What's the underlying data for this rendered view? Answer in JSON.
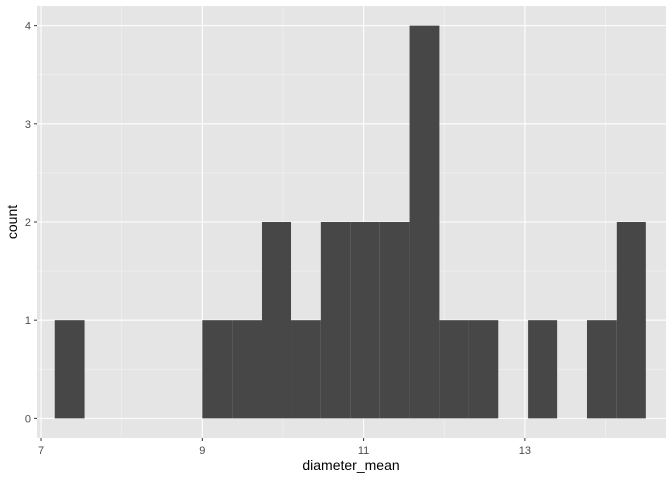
{
  "chart_data": {
    "type": "bar",
    "subtype": "histogram",
    "title": "",
    "xlabel": "diameter_mean",
    "ylabel": "count",
    "xlim": [
      6.95,
      14.75
    ],
    "ylim": [
      -0.2,
      4.2
    ],
    "x_ticks": [
      7,
      9,
      11,
      13
    ],
    "x_tick_labels": [
      "7",
      "9",
      "11",
      "13"
    ],
    "y_ticks": [
      0,
      1,
      2,
      3,
      4
    ],
    "y_tick_labels": [
      "0",
      "1",
      "2",
      "3",
      "4"
    ],
    "grid": true,
    "colors": {
      "panel": "#e5e5e5",
      "grid_major": "#ffffff",
      "bar": "#474747",
      "tick_label": "#4d4d4d"
    },
    "bins": [
      {
        "x0": 7.17,
        "x1": 7.54,
        "count": 1
      },
      {
        "x0": 7.54,
        "x1": 7.9,
        "count": 0
      },
      {
        "x0": 7.9,
        "x1": 8.27,
        "count": 0
      },
      {
        "x0": 8.27,
        "x1": 8.64,
        "count": 0
      },
      {
        "x0": 8.64,
        "x1": 9.0,
        "count": 0
      },
      {
        "x0": 9.0,
        "x1": 9.37,
        "count": 1
      },
      {
        "x0": 9.37,
        "x1": 9.74,
        "count": 1
      },
      {
        "x0": 9.74,
        "x1": 10.1,
        "count": 2
      },
      {
        "x0": 10.1,
        "x1": 10.47,
        "count": 1
      },
      {
        "x0": 10.47,
        "x1": 10.84,
        "count": 2
      },
      {
        "x0": 10.84,
        "x1": 11.2,
        "count": 2
      },
      {
        "x0": 11.2,
        "x1": 11.57,
        "count": 2
      },
      {
        "x0": 11.57,
        "x1": 11.94,
        "count": 4
      },
      {
        "x0": 11.94,
        "x1": 12.3,
        "count": 1
      },
      {
        "x0": 12.3,
        "x1": 12.67,
        "count": 1
      },
      {
        "x0": 12.67,
        "x1": 13.04,
        "count": 0
      },
      {
        "x0": 13.04,
        "x1": 13.4,
        "count": 1
      },
      {
        "x0": 13.4,
        "x1": 13.77,
        "count": 0
      },
      {
        "x0": 13.77,
        "x1": 14.14,
        "count": 1
      },
      {
        "x0": 14.14,
        "x1": 14.5,
        "count": 2
      }
    ]
  }
}
